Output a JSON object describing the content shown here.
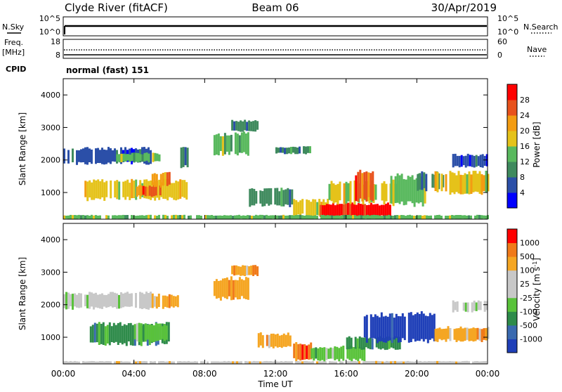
{
  "header": {
    "station": "Clyde River (fitACF)",
    "beam": "Beam 06",
    "date": "30/Apr/2019"
  },
  "top_panels": {
    "nsky_label": "N.Sky",
    "nsky_ticks": [
      "10^5",
      "10^0"
    ],
    "nsearch_label": "N.Search",
    "nsearch_ticks": [
      "10^5",
      "10^0"
    ],
    "freq_label": "Freq.",
    "freq_unit": "[MHz]",
    "freq_ticks": [
      "18",
      "8"
    ],
    "nave_label": "Nave",
    "nave_ticks": [
      "60",
      "0"
    ],
    "cpid_label": "CPID",
    "cpid_value": "normal (fast) 151"
  },
  "chart_data": [
    {
      "type": "heatmap",
      "name": "power",
      "ylabel": "Slant Range [km]",
      "yticks": [
        "1000",
        "2000",
        "3000",
        "4000"
      ],
      "ylim": [
        180,
        4500
      ],
      "xlim": [
        0,
        24
      ],
      "colorbar_label": "Power [dB]",
      "colorbar_ticks": [
        "4",
        "8",
        "12",
        "16",
        "20",
        "24",
        "28"
      ],
      "colors": [
        "#0000ff",
        "#2b4fa8",
        "#3f8a5e",
        "#59b95e",
        "#e5c21a",
        "#f39c12",
        "#e8521c",
        "#ff0000"
      ],
      "patches": [
        {
          "t": [
            0.0,
            5.0
          ],
          "r": [
            1900,
            2350
          ],
          "level": 1
        },
        {
          "t": [
            3.0,
            5.5
          ],
          "r": [
            1950,
            2200
          ],
          "level": 3
        },
        {
          "t": [
            1.2,
            7.0
          ],
          "r": [
            800,
            1350
          ],
          "level": 4
        },
        {
          "t": [
            4.0,
            5.5
          ],
          "r": [
            900,
            1200
          ],
          "level": 6
        },
        {
          "t": [
            5.0,
            6.0
          ],
          "r": [
            1200,
            1600
          ],
          "level": 5
        },
        {
          "t": [
            6.5,
            7.0
          ],
          "r": [
            1800,
            2400
          ],
          "level": 2
        },
        {
          "t": [
            8.5,
            10.5
          ],
          "r": [
            2200,
            2800
          ],
          "level": 3
        },
        {
          "t": [
            9.5,
            11.0
          ],
          "r": [
            2900,
            3200
          ],
          "level": 2
        },
        {
          "t": [
            10.5,
            13.0
          ],
          "r": [
            600,
            1100
          ],
          "level": 2
        },
        {
          "t": [
            12.0,
            14.0
          ],
          "r": [
            2200,
            2400
          ],
          "level": 2
        },
        {
          "t": [
            13.0,
            15.0
          ],
          "r": [
            300,
            750
          ],
          "level": 4
        },
        {
          "t": [
            14.5,
            18.5
          ],
          "r": [
            250,
            650
          ],
          "level": 7
        },
        {
          "t": [
            15.0,
            19.0
          ],
          "r": [
            700,
            1300
          ],
          "level": 4
        },
        {
          "t": [
            16.5,
            17.5
          ],
          "r": [
            800,
            1600
          ],
          "level": 6
        },
        {
          "t": [
            18.5,
            20.5
          ],
          "r": [
            650,
            1500
          ],
          "level": 3
        },
        {
          "t": [
            20.0,
            21.5
          ],
          "r": [
            1100,
            1600
          ],
          "level": 2
        },
        {
          "t": [
            21.0,
            24.0
          ],
          "r": [
            1000,
            1600
          ],
          "level": 4
        },
        {
          "t": [
            22.0,
            24.0
          ],
          "r": [
            1800,
            2150
          ],
          "level": 1
        },
        {
          "t": [
            0.0,
            24.0
          ],
          "r": [
            180,
            300
          ],
          "level": 3
        }
      ]
    },
    {
      "type": "heatmap",
      "name": "velocity",
      "ylabel": "Slant Range [km]",
      "yticks": [
        "1000",
        "2000",
        "3000",
        "4000"
      ],
      "ylim": [
        180,
        4500
      ],
      "xlim": [
        0,
        24
      ],
      "xlabel": "Time UT",
      "xticks": [
        "00:00",
        "04:00",
        "08:00",
        "12:00",
        "16:00",
        "20:00",
        "00:00"
      ],
      "colorbar_label": "Velocity",
      "colorbar_unit": "[m s",
      "colorbar_unit_exp": "-1",
      "colorbar_unit_end": "]",
      "colorbar_ticks": [
        "1000",
        "500",
        "100",
        "25",
        "-25",
        "-100",
        "-500",
        "-1000"
      ],
      "colors": [
        "#1f3fb8",
        "#3a6ab0",
        "#2e8b4a",
        "#59c23a",
        "#c8c8c8",
        "#c8c8c8",
        "#f5a623",
        "#f07a1a",
        "#ff0000"
      ],
      "patches": [
        {
          "t": [
            0.0,
            5.0
          ],
          "r": [
            1900,
            2350
          ],
          "level": 4
        },
        {
          "t": [
            5.0,
            6.5
          ],
          "r": [
            1900,
            2300
          ],
          "level": 6
        },
        {
          "t": [
            1.5,
            6.0
          ],
          "r": [
            800,
            1400
          ],
          "level": 2
        },
        {
          "t": [
            4.0,
            5.8
          ],
          "r": [
            900,
            1400
          ],
          "level": 3
        },
        {
          "t": [
            8.5,
            10.5
          ],
          "r": [
            2200,
            2800
          ],
          "level": 6
        },
        {
          "t": [
            9.5,
            11.0
          ],
          "r": [
            2900,
            3200
          ],
          "level": 6
        },
        {
          "t": [
            11.0,
            13.0
          ],
          "r": [
            700,
            1100
          ],
          "level": 6
        },
        {
          "t": [
            13.0,
            14.0
          ],
          "r": [
            300,
            800
          ],
          "level": 7
        },
        {
          "t": [
            14.0,
            17.0
          ],
          "r": [
            300,
            700
          ],
          "level": 3
        },
        {
          "t": [
            16.0,
            19.0
          ],
          "r": [
            650,
            1000
          ],
          "level": 2
        },
        {
          "t": [
            17.0,
            21.0
          ],
          "r": [
            900,
            1700
          ],
          "level": 0
        },
        {
          "t": [
            21.0,
            24.0
          ],
          "r": [
            900,
            1300
          ],
          "level": 6
        },
        {
          "t": [
            22.0,
            24.0
          ],
          "r": [
            1800,
            2100
          ],
          "level": 4
        },
        {
          "t": [
            0.0,
            24.0
          ],
          "r": [
            180,
            260
          ],
          "level": 5
        }
      ]
    }
  ]
}
